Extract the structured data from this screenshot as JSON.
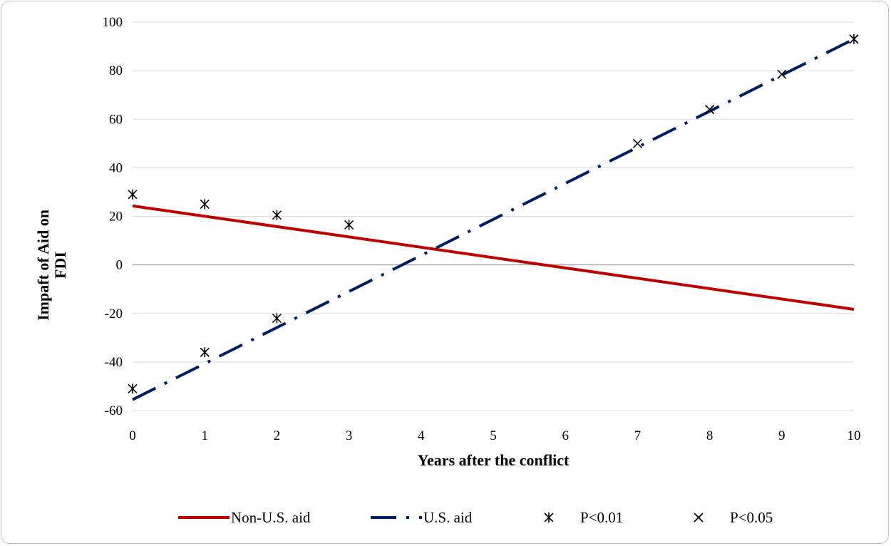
{
  "chart_data": {
    "type": "line",
    "xlabel": "Years after the conflict",
    "ylabel_lines": [
      "Impaft of  Aid on",
      "FDI"
    ],
    "xlim": [
      0,
      10
    ],
    "ylim": [
      -60,
      100
    ],
    "x_ticks": [
      "0",
      "1",
      "2",
      "3",
      "4",
      "5",
      "6",
      "7",
      "8",
      "9",
      "10"
    ],
    "y_ticks": [
      "100",
      "80",
      "60",
      "40",
      "20",
      "0",
      "-20",
      "-40",
      "-60"
    ],
    "grid": true,
    "legend_position": "bottom",
    "series": [
      {
        "name": "Non-U.S. aid",
        "kind": "line",
        "style": "solid",
        "color": "#c00000",
        "x": [
          0,
          10
        ],
        "y": [
          24.3,
          -18.3
        ]
      },
      {
        "name": "U.S. aid",
        "kind": "line",
        "style": "dash-dot",
        "color": "#002060",
        "x": [
          0,
          10
        ],
        "y": [
          -55.5,
          93
        ]
      },
      {
        "name": "P<0.01",
        "kind": "marker",
        "marker": "asterisk",
        "color": "#000000",
        "x": [
          0,
          1,
          2,
          3,
          0,
          1,
          2,
          10
        ],
        "y": [
          29,
          25,
          20.5,
          16.5,
          -51,
          -36,
          -22,
          93
        ]
      },
      {
        "name": "P<0.05",
        "kind": "marker",
        "marker": "x",
        "color": "#000000",
        "x": [
          7,
          8,
          9,
          10
        ],
        "y": [
          50,
          64,
          78.5,
          93
        ]
      }
    ]
  }
}
